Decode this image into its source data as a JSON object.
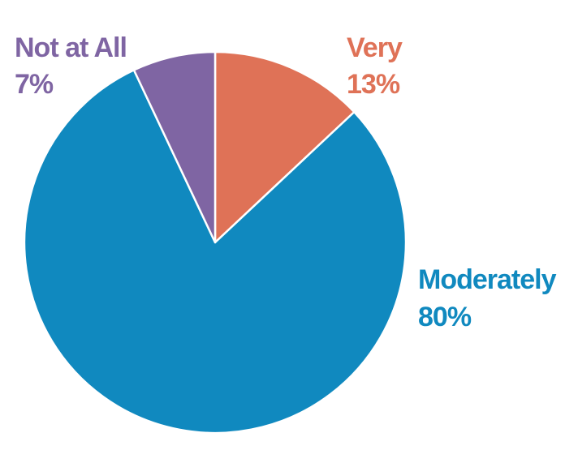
{
  "chart_data": {
    "type": "pie",
    "slices": [
      {
        "label": "Very",
        "value": 13,
        "value_label": "13%",
        "color": "#DF7257"
      },
      {
        "label": "Moderately",
        "value": 80,
        "value_label": "80%",
        "color": "#1089BF"
      },
      {
        "label": "Not at All",
        "value": 7,
        "value_label": "7%",
        "color": "#7F65A3"
      }
    ],
    "start": "12 o'clock",
    "direction": "clockwise",
    "legend": "none"
  }
}
